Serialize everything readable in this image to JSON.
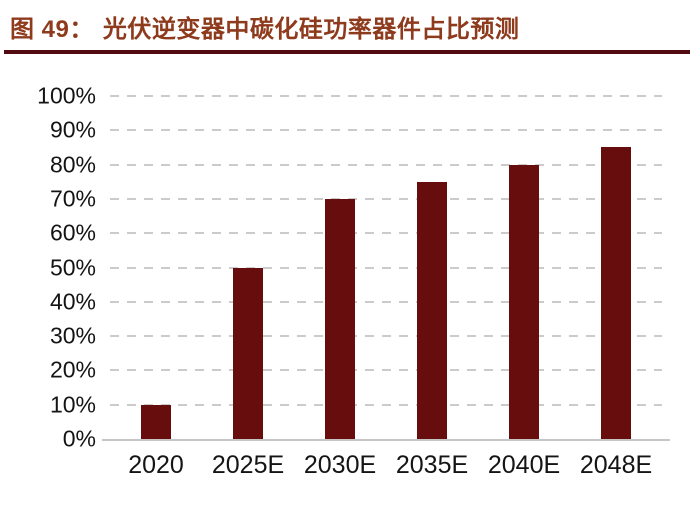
{
  "header": {
    "figure_label": "图 49：",
    "title_text": "光伏逆变器中碳化硅功率器件占比预测"
  },
  "chart_data": {
    "type": "bar",
    "title": "光伏逆变器中碳化硅功率器件占比预测",
    "categories": [
      "2020",
      "2025E",
      "2030E",
      "2035E",
      "2040E",
      "2048E"
    ],
    "values": [
      10,
      50,
      70,
      75,
      80,
      85
    ],
    "xlabel": "",
    "ylabel": "",
    "ylim": [
      0,
      100
    ],
    "ytick_step": 10,
    "ytick_labels": [
      "0%",
      "10%",
      "20%",
      "30%",
      "40%",
      "50%",
      "60%",
      "70%",
      "80%",
      "90%",
      "100%"
    ],
    "grid": "horizontal-dashed",
    "legend_position": "none",
    "bar_color": "#670D0D"
  },
  "colors": {
    "bar_maroon": "#670D0D",
    "title_text": "#8E3A1C",
    "title_rule": "#520C11",
    "gridline": "#CBCBCB",
    "baseline": "#C6C6C6",
    "axis_text": "#141414"
  }
}
